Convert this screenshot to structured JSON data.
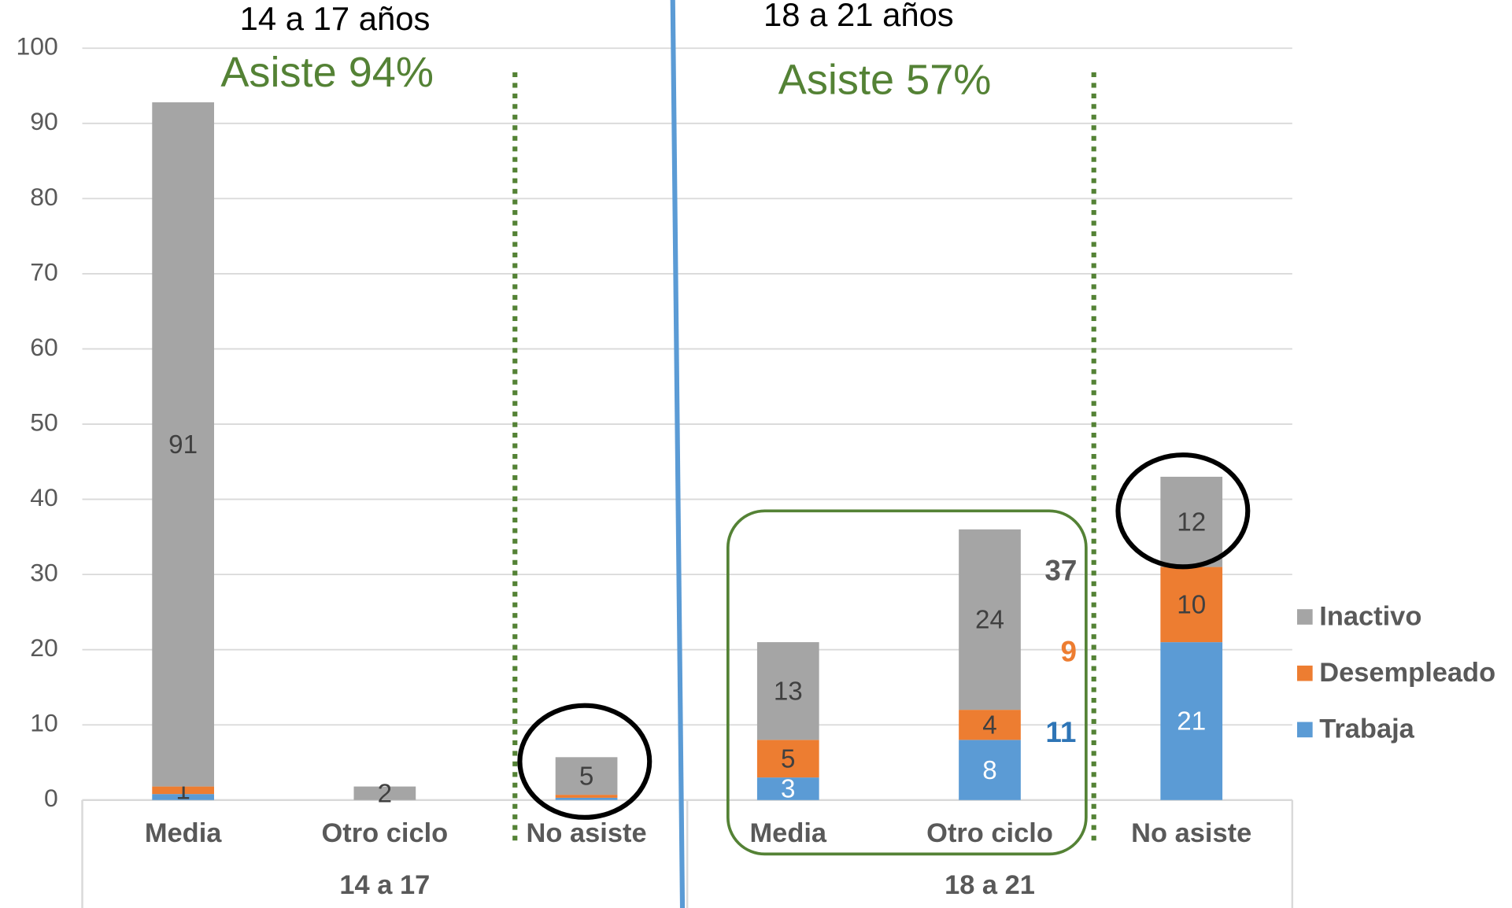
{
  "chart_data": {
    "type": "stacked_bar",
    "groups": [
      "14 a 17",
      "18 a 21"
    ],
    "categories": [
      "Media",
      "Otro ciclo",
      "No asiste",
      "Media",
      "Otro ciclo",
      "No asiste"
    ],
    "category_groups": [
      0,
      0,
      0,
      1,
      1,
      1
    ],
    "series": [
      {
        "name": "Trabaja",
        "color": "#5b9bd5",
        "values": [
          0.8,
          0,
          0.3,
          3,
          8,
          21
        ],
        "value_labels": [
          null,
          null,
          null,
          "3",
          "8",
          "21"
        ]
      },
      {
        "name": "Desempleado",
        "color": "#ed7d31",
        "values": [
          1,
          0,
          0.4,
          5,
          4,
          10
        ],
        "value_labels": [
          "1",
          null,
          null,
          "5",
          "4",
          "10"
        ]
      },
      {
        "name": "Inactivo",
        "color": "#a5a5a5",
        "values": [
          91,
          1.8,
          5,
          13,
          24,
          12
        ],
        "value_labels": [
          "91",
          "2",
          "5",
          "13",
          "24",
          "12"
        ]
      }
    ],
    "ylim": [
      0,
      100
    ],
    "yticks": [
      0,
      10,
      20,
      30,
      40,
      50,
      60,
      70,
      80,
      90,
      100
    ],
    "grid": true,
    "legend": "right",
    "annotations": [
      {
        "text": "14 a 17 años",
        "color": "#000000"
      },
      {
        "text": "Asiste 94%",
        "color": "#548235"
      },
      {
        "text": "18 a 21 años",
        "color": "#000000"
      },
      {
        "text": "Asiste 57%",
        "color": "#548235"
      },
      {
        "text": "37",
        "color": "#595959"
      },
      {
        "text": "9",
        "color": "#ed7d31"
      },
      {
        "text": "11",
        "color": "#2e75b6"
      }
    ]
  }
}
